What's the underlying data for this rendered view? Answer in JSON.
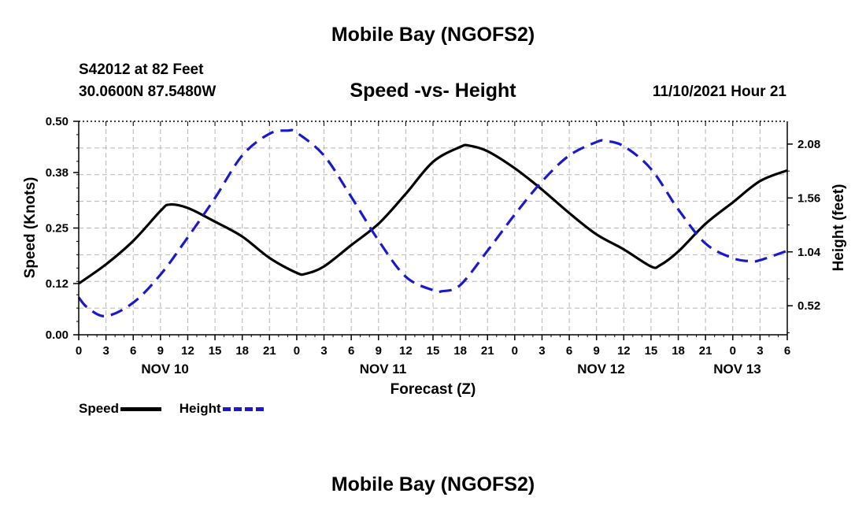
{
  "header": {
    "title": "Mobile Bay (NGOFS2)",
    "station": "S42012 at 82 Feet",
    "coords": "30.0600N  87.5480W",
    "subtitle": "Speed -vs- Height",
    "datetime": "11/10/2021 Hour 21"
  },
  "footer": {
    "title": "Mobile Bay (NGOFS2)"
  },
  "legend": {
    "items": [
      {
        "label": "Speed",
        "color": "#000000",
        "style": "solid"
      },
      {
        "label": "Height",
        "color": "#1a1acc",
        "style": "dashed"
      }
    ]
  },
  "chart_data": {
    "type": "line",
    "xlabel": "Forecast (Z)",
    "ylabel": "Speed (Knots)",
    "y2label": "Height (feet)",
    "grid": true,
    "xlim": [
      0,
      78
    ],
    "ylim": [
      0,
      0.5
    ],
    "y2lim": [
      0.24,
      2.3
    ],
    "xticks": [
      0,
      3,
      6,
      9,
      12,
      15,
      18,
      21,
      24,
      27,
      30,
      33,
      36,
      39,
      42,
      45,
      48,
      51,
      54,
      57,
      60,
      63,
      66,
      69,
      72,
      75,
      78
    ],
    "xtick_labels": [
      "0",
      "3",
      "6",
      "9",
      "12",
      "15",
      "18",
      "21",
      "0",
      "3",
      "6",
      "9",
      "12",
      "15",
      "18",
      "21",
      "0",
      "3",
      "6",
      "9",
      "12",
      "15",
      "18",
      "21",
      "0",
      "3",
      "6"
    ],
    "yticks": [
      0,
      0.12,
      0.25,
      0.38,
      0.5
    ],
    "ytick_labels": [
      "0.00",
      "0.12",
      "0.25",
      "0.38",
      "0.50"
    ],
    "y2ticks": [
      0.52,
      1.04,
      1.56,
      2.08
    ],
    "y2tick_labels": [
      "0.52",
      "1.04",
      "1.56",
      "2.08"
    ],
    "day_labels": [
      {
        "x": 9.5,
        "label": "NOV 10"
      },
      {
        "x": 33.5,
        "label": "NOV 11"
      },
      {
        "x": 57.5,
        "label": "NOV 12"
      },
      {
        "x": 72.5,
        "label": "NOV 13"
      }
    ],
    "series": [
      {
        "name": "Speed",
        "axis": "left",
        "color": "#000000",
        "style": "solid",
        "x": [
          0,
          3,
          6,
          9,
          10,
          12,
          15,
          18,
          21,
          24,
          25,
          27,
          30,
          33,
          36,
          39,
          42,
          43,
          45,
          48,
          51,
          54,
          57,
          60,
          63,
          64,
          66,
          69,
          72,
          75,
          78
        ],
        "y": [
          0.12,
          0.165,
          0.22,
          0.29,
          0.305,
          0.297,
          0.265,
          0.23,
          0.18,
          0.145,
          0.143,
          0.16,
          0.21,
          0.26,
          0.33,
          0.405,
          0.44,
          0.443,
          0.43,
          0.39,
          0.34,
          0.285,
          0.235,
          0.2,
          0.16,
          0.163,
          0.195,
          0.26,
          0.31,
          0.36,
          0.385
        ]
      },
      {
        "name": "Height",
        "axis": "right",
        "color": "#1a1acc",
        "style": "dashed",
        "x": [
          0,
          1,
          3,
          6,
          9,
          12,
          15,
          18,
          21,
          23,
          24,
          27,
          30,
          33,
          36,
          39,
          40,
          42,
          45,
          48,
          51,
          54,
          57,
          58,
          60,
          63,
          66,
          69,
          72,
          74,
          75,
          78
        ],
        "y": [
          0.6,
          0.5,
          0.42,
          0.55,
          0.82,
          1.18,
          1.56,
          1.97,
          2.18,
          2.21,
          2.19,
          1.97,
          1.57,
          1.15,
          0.8,
          0.67,
          0.66,
          0.72,
          1.05,
          1.4,
          1.72,
          1.97,
          2.1,
          2.11,
          2.06,
          1.84,
          1.45,
          1.12,
          0.98,
          0.95,
          0.96,
          1.05
        ]
      }
    ]
  }
}
